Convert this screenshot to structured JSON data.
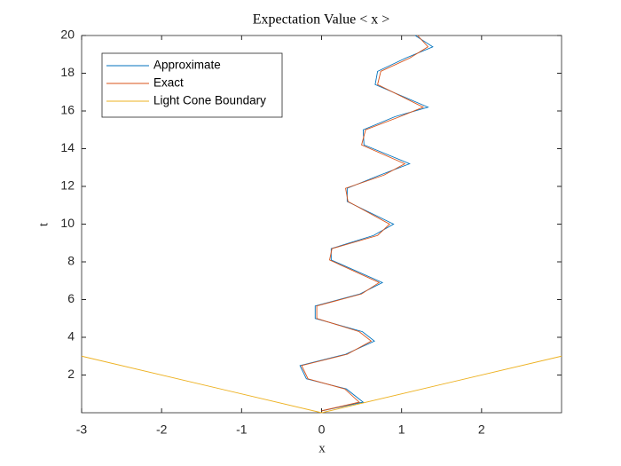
{
  "chart_data": {
    "type": "line",
    "title": "Expectation Value < x >",
    "x_label": "x",
    "y_label": "t",
    "xlim": [
      -3,
      3
    ],
    "xticks": [
      -3,
      -2,
      -1,
      0,
      1,
      2
    ],
    "ylim": [
      0,
      20
    ],
    "yticks": [
      2,
      4,
      6,
      8,
      10,
      12,
      14,
      16,
      18,
      20
    ],
    "legend_position": "upper left",
    "grid": false,
    "series": [
      {
        "name": "Approximate",
        "color": "#0072bd",
        "x": [
          0.0,
          0.52,
          0.31,
          -0.19,
          -0.27,
          0.3,
          0.66,
          0.51,
          -0.08,
          -0.08,
          0.48,
          0.76,
          0.12,
          0.12,
          0.65,
          0.9,
          0.32,
          0.32,
          0.73,
          1.1,
          0.53,
          0.52,
          0.92,
          1.33,
          0.67,
          0.7,
          1.05,
          1.39,
          1.17
        ],
        "values": [
          0.1,
          0.56,
          1.26,
          1.8,
          2.5,
          3.1,
          3.8,
          4.3,
          5.0,
          5.66,
          6.3,
          6.9,
          8.1,
          8.7,
          9.4,
          10.0,
          11.2,
          11.9,
          12.6,
          13.2,
          14.2,
          15.0,
          15.7,
          16.2,
          17.4,
          18.1,
          18.8,
          19.4,
          20.0
        ]
      },
      {
        "name": "Exact",
        "color": "#d95319",
        "x": [
          0.0,
          0.47,
          0.29,
          -0.17,
          -0.25,
          0.32,
          0.62,
          0.47,
          -0.06,
          -0.06,
          0.5,
          0.72,
          0.1,
          0.13,
          0.7,
          0.85,
          0.33,
          0.3,
          0.78,
          1.04,
          0.5,
          0.55,
          0.98,
          1.27,
          0.7,
          0.74,
          1.1,
          1.33,
          1.2
        ],
        "values": [
          0.1,
          0.56,
          1.26,
          1.8,
          2.5,
          3.1,
          3.8,
          4.3,
          5.0,
          5.66,
          6.3,
          6.9,
          8.1,
          8.7,
          9.4,
          10.0,
          11.2,
          11.9,
          12.6,
          13.2,
          14.2,
          15.0,
          15.7,
          16.2,
          17.4,
          18.1,
          18.8,
          19.4,
          20.0
        ]
      },
      {
        "name": "Light Cone Boundary",
        "color": "#edb120",
        "x": [
          -3,
          0,
          3
        ],
        "values": [
          3,
          0,
          3
        ]
      }
    ]
  }
}
